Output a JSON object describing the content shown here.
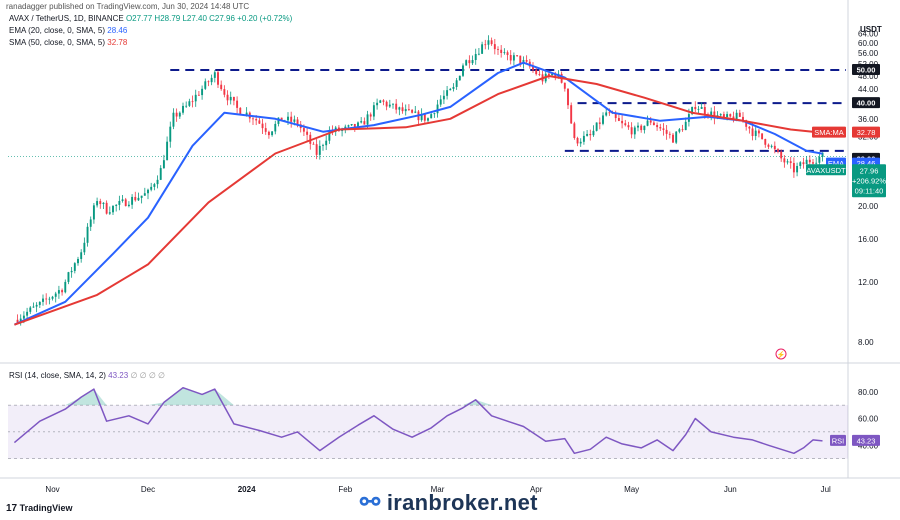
{
  "header": {
    "publisher": "ranadagger published on TradingView.com, Jun 30, 2024 14:48 UTC"
  },
  "legend": {
    "symbol": "AVAX / TetherUS, 1D, BINANCE",
    "ohlc": "O27.77  H28.79  L27.40  C27.96  +0.20 (+0.72%)",
    "ema_label": "EMA (20, close, 0, SMA, 5)",
    "ema_value": "28.46",
    "sma_label": "SMA (50, close, 0, SMA, 5)",
    "sma_value": "32.78",
    "rsi_label": "RSI (14, close, SMA, 14, 2)",
    "rsi_value": "43.23",
    "rsi_extra": "∅ ∅ ∅ ∅"
  },
  "axis_badges": {
    "currency": "USDT",
    "sma_tag": "SMA:MA",
    "sma_val": "32.78",
    "level_29": "29.00",
    "ema_tag": "EMA",
    "ema_val": "28.46",
    "pair_tag": "AVAXUSDT",
    "price": "27.96",
    "change": "+206.92%",
    "countdown": "09:11:40",
    "level_50": "50.00",
    "level_40": "40.00",
    "rsi_tag": "RSI",
    "rsi_val": "43.23"
  },
  "footer": {
    "tv_logo": "TradingView",
    "watermark": "iranbroker.net"
  },
  "colors": {
    "up": "#089981",
    "down": "#f23645",
    "ema": "#2962ff",
    "sma": "#e53935",
    "rsi": "#7e57c2",
    "level": "#0d1b8c"
  },
  "chart_data": {
    "type": "candlestick",
    "price_axis": {
      "ticks": [
        "64.00",
        "60.00",
        "56.00",
        "52.00",
        "48.00",
        "44.00",
        "40.00",
        "36.00",
        "32.00",
        "28.00",
        "24.00",
        "20.00",
        "16.00",
        "12.00",
        "8.00"
      ],
      "scale": "log"
    },
    "time_axis": {
      "ticks": [
        "Nov",
        "Dec",
        "2024",
        "Feb",
        "Mar",
        "Apr",
        "May",
        "Jun",
        "Jul"
      ]
    },
    "horizontal_levels": [
      50,
      40,
      29
    ],
    "close_path": [
      [
        "2023-10-20",
        9.3
      ],
      [
        "2023-10-28",
        10.3
      ],
      [
        "2023-11-04",
        11.5
      ],
      [
        "2023-11-10",
        14.8
      ],
      [
        "2023-11-15",
        21.0
      ],
      [
        "2023-11-18",
        19.5
      ],
      [
        "2023-11-25",
        20.8
      ],
      [
        "2023-12-01",
        21.8
      ],
      [
        "2023-12-05",
        25.5
      ],
      [
        "2023-12-09",
        36.5
      ],
      [
        "2023-12-13",
        39.0
      ],
      [
        "2023-12-17",
        43.0
      ],
      [
        "2023-12-22",
        48.5
      ],
      [
        "2023-12-25",
        43.0
      ],
      [
        "2023-12-29",
        38.5
      ],
      [
        "2024-01-03",
        36.5
      ],
      [
        "2024-01-08",
        33.0
      ],
      [
        "2024-01-12",
        36.0
      ],
      [
        "2024-01-17",
        35.0
      ],
      [
        "2024-01-23",
        28.5
      ],
      [
        "2024-01-27",
        33.0
      ],
      [
        "2024-02-01",
        33.5
      ],
      [
        "2024-02-06",
        34.5
      ],
      [
        "2024-02-12",
        40.5
      ],
      [
        "2024-02-17",
        38.5
      ],
      [
        "2024-02-22",
        37.0
      ],
      [
        "2024-02-27",
        36.0
      ],
      [
        "2024-03-02",
        41.0
      ],
      [
        "2024-03-06",
        44.0
      ],
      [
        "2024-03-09",
        52.0
      ],
      [
        "2024-03-13",
        56.0
      ],
      [
        "2024-03-17",
        62.0
      ],
      [
        "2024-03-21",
        55.0
      ],
      [
        "2024-03-26",
        54.0
      ],
      [
        "2024-03-30",
        51.0
      ],
      [
        "2024-04-03",
        47.0
      ],
      [
        "2024-04-07",
        49.0
      ],
      [
        "2024-04-10",
        45.0
      ],
      [
        "2024-04-13",
        31.0
      ],
      [
        "2024-04-18",
        32.0
      ],
      [
        "2024-04-23",
        37.5
      ],
      [
        "2024-04-28",
        34.5
      ],
      [
        "2024-05-02",
        33.0
      ],
      [
        "2024-05-07",
        35.5
      ],
      [
        "2024-05-14",
        31.5
      ],
      [
        "2024-05-18",
        35.0
      ],
      [
        "2024-05-21",
        39.5
      ],
      [
        "2024-05-25",
        37.5
      ],
      [
        "2024-05-30",
        36.0
      ],
      [
        "2024-06-04",
        36.5
      ],
      [
        "2024-06-08",
        33.0
      ],
      [
        "2024-06-13",
        30.5
      ],
      [
        "2024-06-17",
        27.5
      ],
      [
        "2024-06-21",
        25.5
      ],
      [
        "2024-06-25",
        27.0
      ],
      [
        "2024-06-30",
        27.96
      ]
    ],
    "series": [
      {
        "name": "EMA",
        "points": [
          [
            "2023-10-20",
            9.0
          ],
          [
            "2023-11-05",
            10.5
          ],
          [
            "2023-11-20",
            14.5
          ],
          [
            "2023-12-01",
            18.5
          ],
          [
            "2023-12-15",
            30.0
          ],
          [
            "2023-12-25",
            37.5
          ],
          [
            "2024-01-10",
            36.0
          ],
          [
            "2024-01-25",
            33.0
          ],
          [
            "2024-02-10",
            34.5
          ],
          [
            "2024-02-25",
            37.0
          ],
          [
            "2024-03-05",
            39.0
          ],
          [
            "2024-03-20",
            49.0
          ],
          [
            "2024-03-28",
            52.5
          ],
          [
            "2024-04-10",
            47.5
          ],
          [
            "2024-04-25",
            37.5
          ],
          [
            "2024-05-10",
            35.5
          ],
          [
            "2024-05-25",
            36.5
          ],
          [
            "2024-06-05",
            35.5
          ],
          [
            "2024-06-15",
            32.5
          ],
          [
            "2024-06-25",
            29.0
          ],
          [
            "2024-06-30",
            28.46
          ]
        ]
      },
      {
        "name": "SMA:MA",
        "points": [
          [
            "2023-10-20",
            9.0
          ],
          [
            "2023-11-15",
            11.0
          ],
          [
            "2023-12-01",
            13.5
          ],
          [
            "2023-12-20",
            20.5
          ],
          [
            "2024-01-10",
            28.5
          ],
          [
            "2024-01-30",
            33.5
          ],
          [
            "2024-02-20",
            34.0
          ],
          [
            "2024-03-05",
            36.0
          ],
          [
            "2024-03-20",
            42.5
          ],
          [
            "2024-04-05",
            48.0
          ],
          [
            "2024-04-20",
            45.5
          ],
          [
            "2024-05-05",
            41.5
          ],
          [
            "2024-05-20",
            37.5
          ],
          [
            "2024-06-05",
            35.5
          ],
          [
            "2024-06-20",
            33.5
          ],
          [
            "2024-06-30",
            32.78
          ]
        ]
      }
    ],
    "rsi": {
      "ticks": [
        "80.00",
        "60.00",
        "40.00"
      ],
      "band": [
        30,
        70
      ],
      "mid": 50,
      "points": [
        [
          "2023-10-20",
          42
        ],
        [
          "2023-10-28",
          58
        ],
        [
          "2023-11-05",
          67
        ],
        [
          "2023-11-10",
          76
        ],
        [
          "2023-11-14",
          82
        ],
        [
          "2023-11-18",
          58
        ],
        [
          "2023-11-25",
          62
        ],
        [
          "2023-12-01",
          56
        ],
        [
          "2023-12-06",
          72
        ],
        [
          "2023-12-12",
          83
        ],
        [
          "2023-12-18",
          78
        ],
        [
          "2023-12-22",
          82
        ],
        [
          "2023-12-28",
          56
        ],
        [
          "2024-01-05",
          51
        ],
        [
          "2024-01-12",
          46
        ],
        [
          "2024-01-17",
          50
        ],
        [
          "2024-01-24",
          36
        ],
        [
          "2024-01-30",
          46
        ],
        [
          "2024-02-05",
          55
        ],
        [
          "2024-02-10",
          62
        ],
        [
          "2024-02-16",
          52
        ],
        [
          "2024-02-22",
          46
        ],
        [
          "2024-02-28",
          53
        ],
        [
          "2024-03-04",
          62
        ],
        [
          "2024-03-09",
          68
        ],
        [
          "2024-03-13",
          74
        ],
        [
          "2024-03-18",
          62
        ],
        [
          "2024-03-23",
          58
        ],
        [
          "2024-03-28",
          54
        ],
        [
          "2024-04-04",
          43
        ],
        [
          "2024-04-10",
          45
        ],
        [
          "2024-04-13",
          34
        ],
        [
          "2024-04-18",
          37
        ],
        [
          "2024-04-23",
          46
        ],
        [
          "2024-04-28",
          41
        ],
        [
          "2024-05-04",
          38
        ],
        [
          "2024-05-09",
          44
        ],
        [
          "2024-05-14",
          36
        ],
        [
          "2024-05-18",
          48
        ],
        [
          "2024-05-21",
          60
        ],
        [
          "2024-05-26",
          50
        ],
        [
          "2024-06-02",
          46
        ],
        [
          "2024-06-08",
          44
        ],
        [
          "2024-06-13",
          40
        ],
        [
          "2024-06-17",
          37
        ],
        [
          "2024-06-21",
          34
        ],
        [
          "2024-06-24",
          38
        ],
        [
          "2024-06-27",
          44
        ],
        [
          "2024-06-30",
          43.23
        ]
      ]
    }
  }
}
